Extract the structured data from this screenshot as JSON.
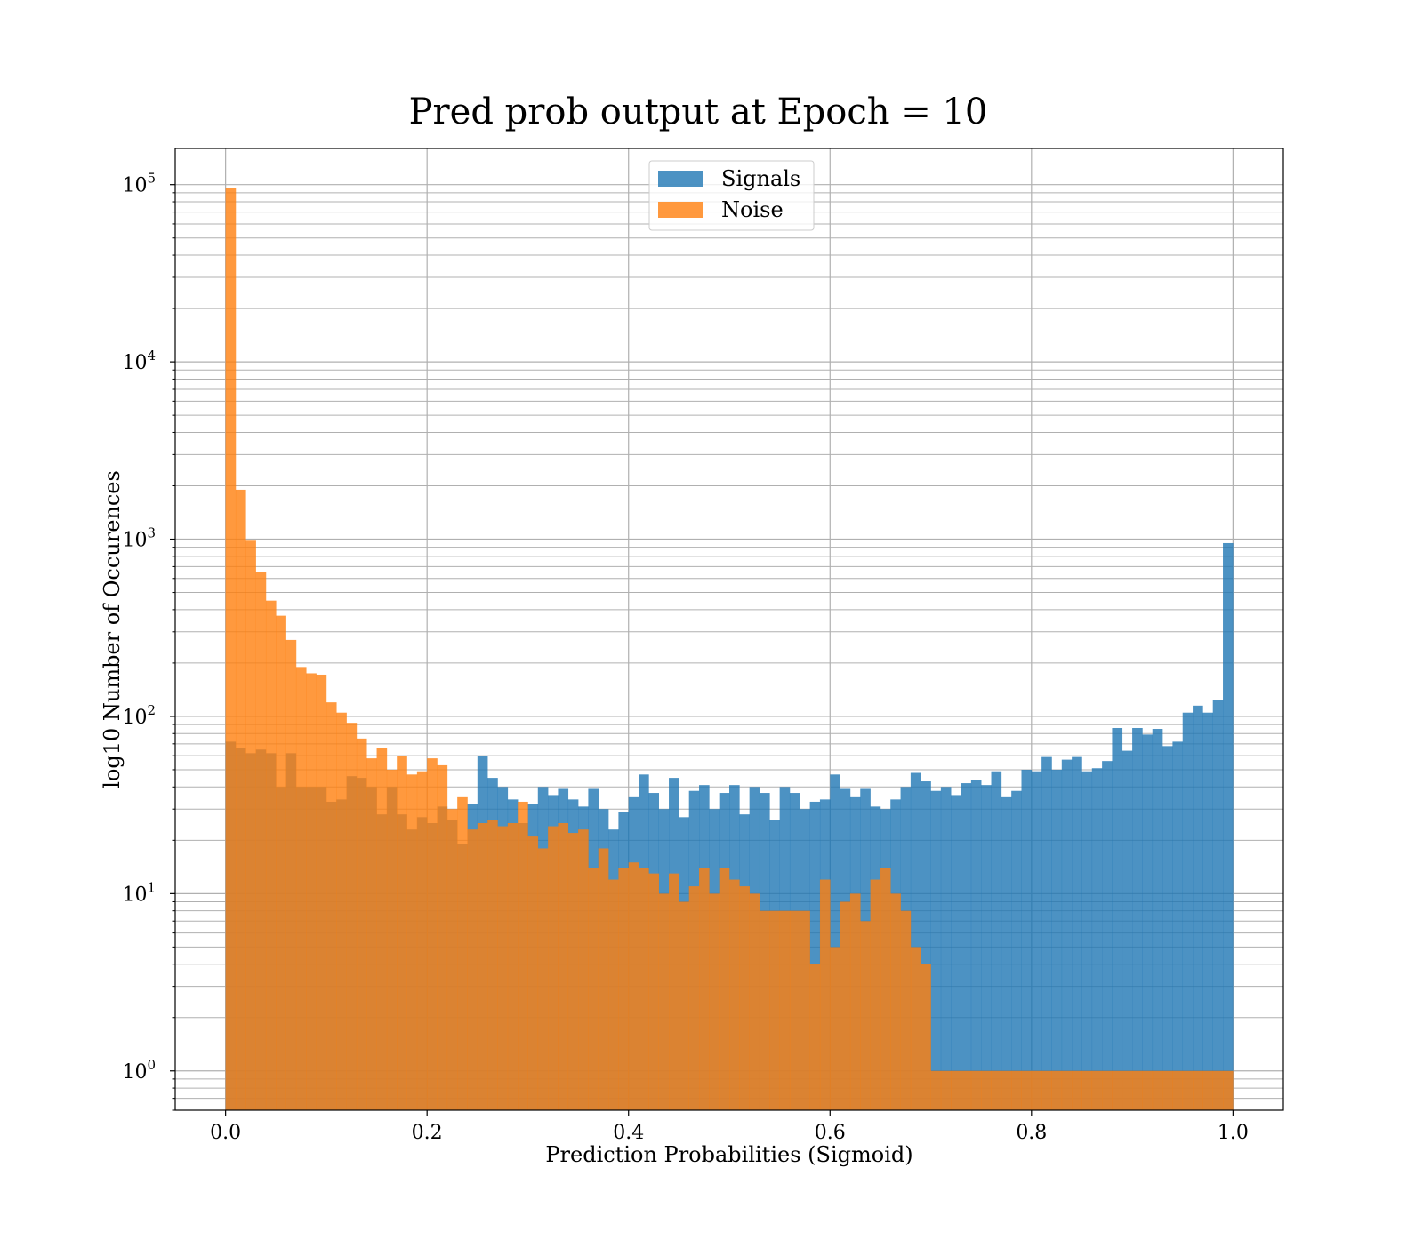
{
  "chart_data": {
    "type": "bar",
    "title": "Pred prob output at Epoch = 10",
    "xlabel": "Prediction Probabilities (Sigmoid)",
    "ylabel": "log10 Number of Occurences",
    "xlim": [
      -0.05,
      1.05
    ],
    "ylim": [
      0.6,
      160000
    ],
    "yscale": "log",
    "xticks": [
      0.0,
      0.2,
      0.4,
      0.6,
      0.8,
      1.0
    ],
    "xtick_labels": [
      "0.0",
      "0.2",
      "0.4",
      "0.6",
      "0.8",
      "1.0"
    ],
    "yticks": [
      1,
      10,
      100,
      1000,
      10000,
      100000
    ],
    "ytick_labels": [
      {
        "base": "10",
        "exp": "0"
      },
      {
        "base": "10",
        "exp": "1"
      },
      {
        "base": "10",
        "exp": "2"
      },
      {
        "base": "10",
        "exp": "3"
      },
      {
        "base": "10",
        "exp": "4"
      },
      {
        "base": "10",
        "exp": "5"
      }
    ],
    "grid": true,
    "legend_position": "top-center",
    "bins": 100,
    "bin_range": [
      0,
      1
    ],
    "series": [
      {
        "name": "Signals",
        "color": "#1f77b4",
        "opacity": 0.8,
        "values": [
          72,
          66,
          62,
          65,
          62,
          40,
          62,
          40,
          40,
          40,
          33,
          34,
          46,
          45,
          40,
          28,
          40,
          28,
          23,
          27,
          25,
          31,
          26,
          19,
          32,
          60,
          45,
          40,
          34,
          25,
          32,
          40,
          36,
          39,
          34,
          31,
          39,
          30,
          23,
          29,
          35,
          47,
          37,
          30,
          45,
          27,
          38,
          41,
          30,
          37,
          41,
          28,
          40,
          37,
          26,
          40,
          37,
          30,
          33,
          34,
          47,
          39,
          35,
          39,
          31,
          30,
          34,
          40,
          48,
          43,
          38,
          40,
          36,
          42,
          44,
          41,
          49,
          35,
          38,
          50,
          49,
          59,
          50,
          57,
          59,
          49,
          51,
          56,
          86,
          64,
          86,
          79,
          85,
          68,
          72,
          105,
          115,
          105,
          124,
          950
        ]
      },
      {
        "name": "Noise",
        "color": "#ff7f0e",
        "opacity": 0.8,
        "values": [
          96000,
          1900,
          980,
          650,
          450,
          370,
          270,
          190,
          175,
          172,
          120,
          105,
          92,
          75,
          58,
          66,
          50,
          60,
          47,
          49,
          58,
          53,
          30,
          35,
          23,
          25,
          26,
          24,
          25,
          33,
          21,
          18,
          24,
          25,
          22,
          23,
          14,
          18,
          12,
          14,
          15,
          14,
          13,
          10,
          13,
          9,
          11,
          14,
          10,
          14,
          12,
          11,
          10,
          8,
          8,
          8,
          8,
          8,
          4,
          12,
          5,
          9,
          10,
          7,
          12,
          14,
          10,
          8,
          5,
          4,
          1,
          1,
          1,
          1,
          1,
          1,
          1,
          1,
          1,
          1,
          1,
          1,
          1,
          1,
          1,
          1,
          1,
          1,
          1,
          1,
          1,
          1,
          1,
          1,
          1,
          1,
          1,
          1,
          1,
          1
        ]
      }
    ]
  }
}
